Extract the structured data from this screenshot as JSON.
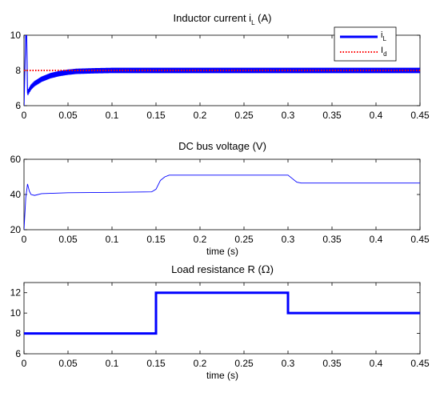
{
  "chart_data": [
    {
      "type": "line",
      "title": "Inductor current i_L (A)",
      "title_main": "Inductor current i",
      "title_sub": "L",
      "title_tail": " (A)",
      "xlabel": "",
      "ylabel": "",
      "xlim": [
        0,
        0.45
      ],
      "ylim": [
        6,
        10
      ],
      "xticks": [
        "0",
        "0.05",
        "0.1",
        "0.15",
        "0.2",
        "0.25",
        "0.3",
        "0.35",
        "0.4",
        "0.45"
      ],
      "yticks": [
        "6",
        "8",
        "10"
      ],
      "grid": false,
      "legend_placement": "top-right",
      "series": [
        {
          "name": "i_L",
          "legend_main": "i",
          "legend_sub": "L",
          "color": "#0000ff",
          "style": "solid",
          "ripple": 0.15,
          "x": [
            0,
            0.002,
            0.003,
            0.004,
            0.005,
            0.008,
            0.012,
            0.02,
            0.03,
            0.04,
            0.05,
            0.06,
            0.08,
            0.1,
            0.15,
            0.2,
            0.25,
            0.3,
            0.35,
            0.4,
            0.45
          ],
          "y": [
            6.0,
            10.0,
            10.0,
            6.7,
            6.8,
            7.05,
            7.25,
            7.5,
            7.7,
            7.82,
            7.9,
            7.95,
            7.98,
            8.0,
            8.0,
            8.0,
            8.0,
            8.0,
            8.0,
            8.0,
            8.0
          ]
        },
        {
          "name": "I_d",
          "legend_main": "I",
          "legend_sub": "d",
          "color": "#ff0000",
          "style": "dotted",
          "x": [
            0,
            0.45
          ],
          "y": [
            8,
            8
          ]
        }
      ]
    },
    {
      "type": "line",
      "title": "DC bus voltage (V)",
      "xlabel": "time (s)",
      "ylabel": "",
      "xlim": [
        0,
        0.45
      ],
      "ylim": [
        20,
        60
      ],
      "xticks": [
        "0",
        "0.05",
        "0.1",
        "0.15",
        "0.2",
        "0.25",
        "0.3",
        "0.35",
        "0.4",
        "0.45"
      ],
      "yticks": [
        "20",
        "40",
        "60"
      ],
      "grid": false,
      "series": [
        {
          "color": "#0000ff",
          "style": "solid",
          "x": [
            0,
            0.002,
            0.004,
            0.006,
            0.008,
            0.012,
            0.02,
            0.05,
            0.1,
            0.145,
            0.15,
            0.155,
            0.16,
            0.165,
            0.2,
            0.25,
            0.3,
            0.305,
            0.31,
            0.315,
            0.35,
            0.4,
            0.45
          ],
          "y": [
            20,
            38,
            46,
            42,
            40,
            39.5,
            40.5,
            41,
            41.2,
            41.5,
            43,
            48,
            50,
            51,
            51,
            51,
            51,
            49,
            47,
            46.5,
            46.5,
            46.5,
            46.5
          ]
        }
      ]
    },
    {
      "type": "line",
      "title": "Load resistance R (Ω)",
      "title_main": "Load resistance R (",
      "title_sym": "Ω",
      "title_tail": ")",
      "xlabel": "time (s)",
      "ylabel": "",
      "xlim": [
        0,
        0.45
      ],
      "ylim": [
        6,
        13
      ],
      "xticks": [
        "0",
        "0.05",
        "0.1",
        "0.15",
        "0.2",
        "0.25",
        "0.3",
        "0.35",
        "0.4",
        "0.45"
      ],
      "yticks": [
        "6",
        "8",
        "10",
        "12"
      ],
      "grid": false,
      "series": [
        {
          "color": "#0000ff",
          "style": "solid",
          "x": [
            0,
            0.15,
            0.15,
            0.3,
            0.3,
            0.45
          ],
          "y": [
            8,
            8,
            12,
            12,
            10,
            10
          ]
        }
      ]
    }
  ]
}
